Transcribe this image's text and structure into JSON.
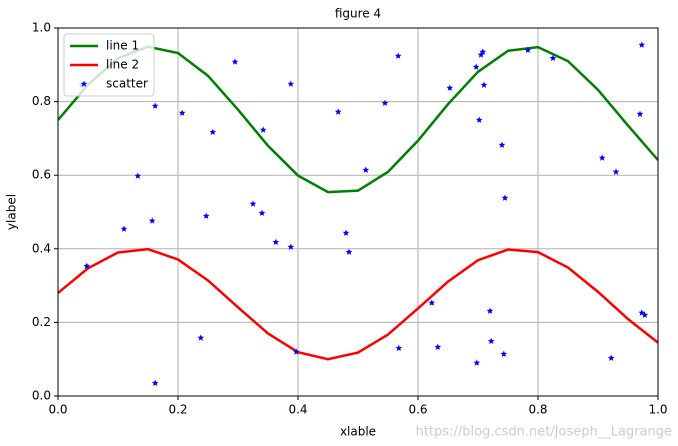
{
  "chart_data": {
    "type": "line",
    "title": "figure 4",
    "xlabel": "xlable",
    "ylabel": "ylabel",
    "watermark": "https://blog.csdn.net/Joseph__Lagrange",
    "xlim": [
      0,
      1
    ],
    "ylim": [
      0,
      1
    ],
    "xticks": [
      {
        "value": 0,
        "label": "0.0"
      },
      0.2,
      0.4,
      0.6,
      0.8,
      {
        "value": 1,
        "label": "1.0"
      }
    ],
    "yticks": [
      {
        "value": 0,
        "label": "0.0"
      },
      0.2,
      0.4,
      0.6,
      0.8,
      {
        "value": 1,
        "label": "1.0"
      }
    ],
    "grid": true,
    "legend": "upper left",
    "x": [
      0,
      0.05,
      0.1,
      0.15,
      0.2,
      0.25,
      0.3,
      0.35,
      0.4,
      0.45,
      0.5,
      0.55,
      0.6,
      0.65,
      0.7,
      0.75,
      0.8,
      0.85,
      0.9,
      0.95,
      1
    ],
    "series": [
      {
        "name": "line 1",
        "type": "line",
        "color": "#008000",
        "values": [
          0.75,
          0.846,
          0.918,
          0.949,
          0.932,
          0.87,
          0.778,
          0.68,
          0.599,
          0.554,
          0.558,
          0.609,
          0.694,
          0.793,
          0.881,
          0.938,
          0.948,
          0.91,
          0.832,
          0.735,
          0.641
        ]
      },
      {
        "name": "line 2",
        "type": "line",
        "color": "#ff0000",
        "values": [
          0.28,
          0.347,
          0.39,
          0.399,
          0.371,
          0.314,
          0.241,
          0.17,
          0.119,
          0.1,
          0.118,
          0.167,
          0.238,
          0.311,
          0.369,
          0.398,
          0.391,
          0.349,
          0.283,
          0.209,
          0.145
        ]
      },
      {
        "name": "scatter",
        "type": "scatter",
        "color": "#0000ff",
        "x": [
          0.04,
          0.048,
          0.11,
          0.133,
          0.157,
          0.162,
          0.162,
          0.207,
          0.238,
          0.247,
          0.258,
          0.295,
          0.325,
          0.34,
          0.342,
          0.363,
          0.388,
          0.388,
          0.397,
          0.467,
          0.48,
          0.485,
          0.513,
          0.545,
          0.567,
          0.568,
          0.623,
          0.633,
          0.653,
          0.698,
          0.697,
          0.702,
          0.705,
          0.708,
          0.71,
          0.72,
          0.722,
          0.74,
          0.743,
          0.745,
          0.783,
          0.825,
          0.907,
          0.922,
          0.93,
          0.97,
          0.973,
          0.973,
          0.978
        ],
        "values": [
          0.845,
          0.353,
          0.454,
          0.598,
          0.476,
          0.788,
          0.035,
          0.769,
          0.158,
          0.489,
          0.717,
          0.908,
          0.522,
          0.497,
          0.723,
          0.418,
          0.848,
          0.405,
          0.12,
          0.772,
          0.443,
          0.391,
          0.614,
          0.796,
          0.924,
          0.13,
          0.253,
          0.133,
          0.837,
          0.09,
          0.894,
          0.75,
          0.927,
          0.935,
          0.845,
          0.231,
          0.149,
          0.682,
          0.114,
          0.538,
          0.94,
          0.918,
          0.647,
          0.103,
          0.609,
          0.766,
          0.954,
          0.226,
          0.22
        ]
      }
    ]
  }
}
